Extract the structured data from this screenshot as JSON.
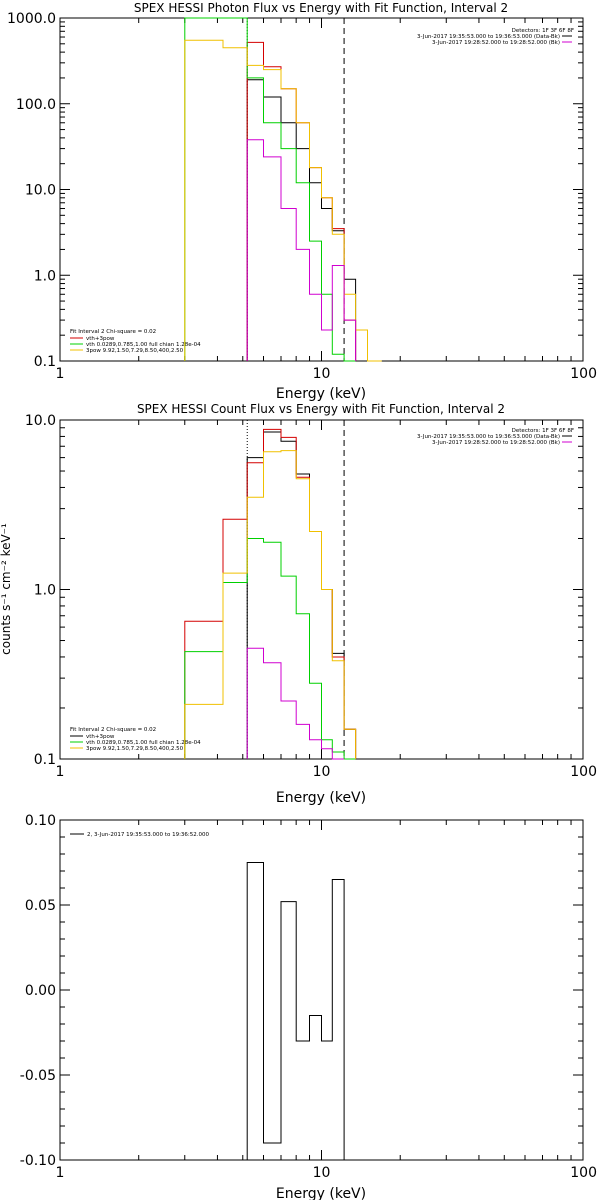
{
  "chart_data": [
    {
      "type": "line",
      "title": "SPEX HESSI Photon Flux vs Energy with Fit Function, Interval 2",
      "xlabel": "Energy (keV)",
      "ylabel": "",
      "xscale": "log",
      "yscale": "log",
      "xlim": [
        1,
        100
      ],
      "ylim": [
        0.1,
        1000
      ],
      "xticks": [
        "1",
        "10",
        "100"
      ],
      "yticks": [
        "0.1",
        "1.0",
        "10.0",
        "100.0",
        "1000.0"
      ],
      "bin_edges": [
        3,
        4.2,
        5.2,
        6,
        7,
        8,
        9,
        10,
        11,
        12.2,
        13.5,
        15,
        17
      ],
      "header": {
        "detectors": "Detectors: 1F 3F 6F 8F",
        "line1": "3-Jun-2017 19:35:53.000 to 19:36:53.000 (Data-Bk)",
        "line2": "3-Jun-2017 19:28:52.000 to 19:28:52.000 (Bk)"
      },
      "fit_legend": {
        "line1": "Fit Interval  2   Chi-square = 0.02",
        "line2": "vth+3pow",
        "line3": "vth 0.0289,0.785,1.00  full chian 1.28e-04",
        "line4": "3pow 9.92,1.50,7.29,8.50,400,2.50"
      },
      "marker_lines_x": [
        5.2,
        12.2
      ],
      "series": [
        {
          "name": "Data-Bk",
          "color": "#000000",
          "values": [
            null,
            null,
            190,
            120,
            60,
            30,
            12,
            6,
            3.3,
            0.9,
            null,
            null
          ]
        },
        {
          "name": "vth+3pow",
          "color": "#d40000",
          "values": [
            null,
            null,
            520,
            270,
            150,
            60,
            18,
            8,
            3.5,
            0.3,
            null,
            null
          ]
        },
        {
          "name": "vth",
          "color": "#00d000",
          "values": [
            1000,
            1000,
            200,
            60,
            30,
            12,
            2.5,
            0.6,
            0.12,
            0.05,
            null,
            null
          ]
        },
        {
          "name": "3pow",
          "color": "#f0c000",
          "values": [
            550,
            450,
            280,
            250,
            150,
            60,
            18,
            8,
            3,
            0.6,
            0.23,
            0.1
          ]
        },
        {
          "name": "Bk",
          "color": "#d000d0",
          "values": [
            null,
            null,
            38,
            24,
            6,
            2,
            0.6,
            0.23,
            1.3,
            0.3,
            null,
            null
          ]
        }
      ]
    },
    {
      "type": "line",
      "title": "SPEX HESSI Count Flux vs Energy with Fit Function, Interval 2",
      "xlabel": "Energy (keV)",
      "ylabel": "counts s⁻¹ cm⁻² keV⁻¹",
      "xscale": "log",
      "yscale": "log",
      "xlim": [
        1,
        100
      ],
      "ylim": [
        0.1,
        10
      ],
      "xticks": [
        "1",
        "10",
        "100"
      ],
      "yticks": [
        "0.1",
        "1.0",
        "10.0"
      ],
      "bin_edges": [
        3,
        4.2,
        5.2,
        6,
        7,
        8,
        9,
        10,
        11,
        12.2,
        13.5
      ],
      "header": {
        "detectors": "Detectors: 1F 3F 6F 8F",
        "line1": "3-Jun-2017 19:35:53.000 to 19:36:53.000 (Data-Bk)",
        "line2": "3-Jun-2017 19:28:52.000 to 19:28:52.000 (Bk)"
      },
      "fit_legend": {
        "line1": "Fit Interval  2   Chi-square = 0.02",
        "line2": "vth+3pow",
        "line3": "vth 0.0289,0.785,1.00  full chian 1.28e-04",
        "line4": "3pow 9.92,1.50,7.29,8.50,400,2.50"
      },
      "marker_lines_x": [
        5.2,
        12.2
      ],
      "series": [
        {
          "name": "Data-Bk",
          "color": "#000000",
          "values": [
            null,
            null,
            6.0,
            8.5,
            7.5,
            4.8,
            2.2,
            1.0,
            0.42,
            0.15
          ]
        },
        {
          "name": "vth+3pow",
          "color": "#d40000",
          "values": [
            0.65,
            2.6,
            5.6,
            8.8,
            7.9,
            4.6,
            2.2,
            1.0,
            0.4,
            0.15
          ]
        },
        {
          "name": "vth",
          "color": "#00d000",
          "values": [
            0.43,
            1.1,
            2.0,
            1.9,
            1.2,
            0.72,
            0.28,
            0.13,
            0.11,
            0.1
          ]
        },
        {
          "name": "3pow",
          "color": "#f0c000",
          "values": [
            0.21,
            1.25,
            3.5,
            6.5,
            6.6,
            4.5,
            2.2,
            1.0,
            0.38,
            0.15
          ]
        },
        {
          "name": "Bk",
          "color": "#d000d0",
          "values": [
            null,
            null,
            0.45,
            0.37,
            0.22,
            0.16,
            0.13,
            0.115,
            0.1,
            null
          ]
        }
      ]
    },
    {
      "type": "line",
      "title": "",
      "xlabel": "Energy (keV)",
      "ylabel": "",
      "xscale": "log",
      "yscale": "linear",
      "xlim": [
        1,
        100
      ],
      "ylim": [
        -0.1,
        0.1
      ],
      "xticks": [
        "1",
        "10",
        "100"
      ],
      "yticks": [
        "-0.10",
        "-0.05",
        "0.00",
        "0.05",
        "0.10"
      ],
      "bin_edges": [
        5.2,
        6,
        7,
        8,
        9,
        10,
        11,
        12.2
      ],
      "legend": "2,  3-Jun-2017 19:35:53.000 to 19:36:52.000",
      "series": [
        {
          "name": "",
          "color": "#000000",
          "values": [
            0.075,
            -0.09,
            0.052,
            -0.03,
            -0.015,
            -0.03,
            0.065
          ]
        }
      ]
    }
  ]
}
